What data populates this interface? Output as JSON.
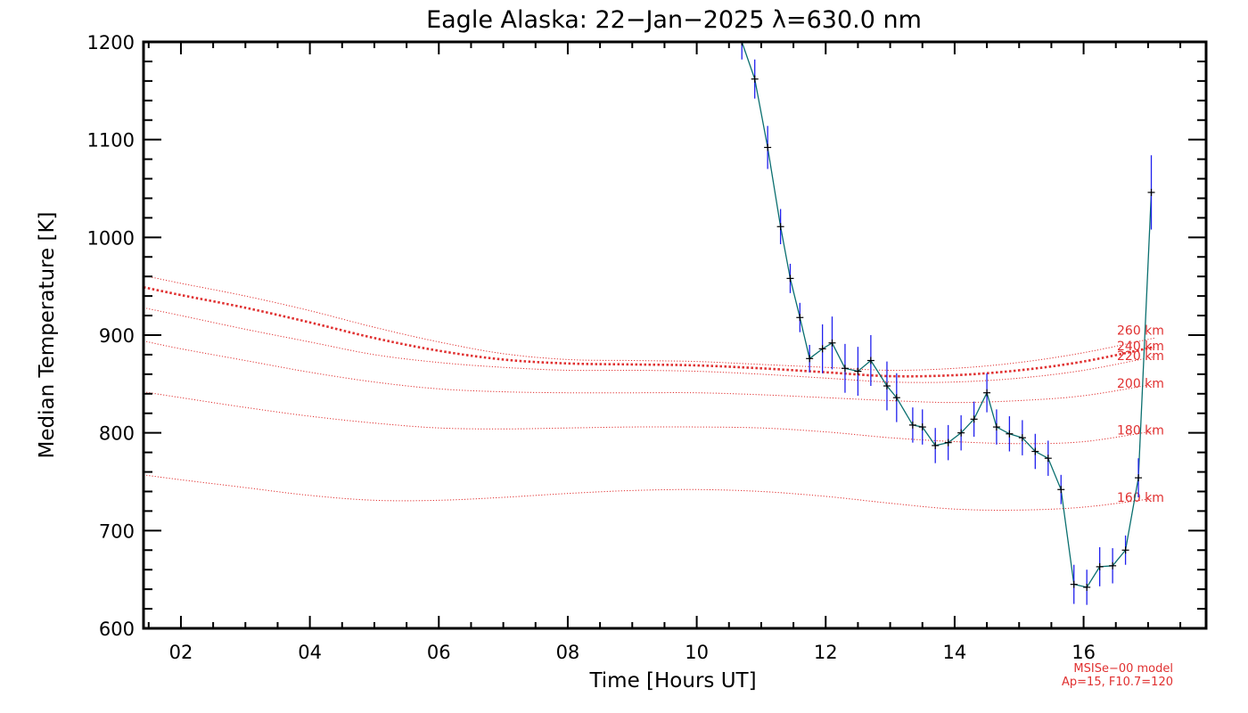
{
  "chart_data": {
    "type": "line",
    "title": "Eagle Alaska: 22−Jan−2025 λ=630.0 nm",
    "xlabel": "Time [Hours UT]",
    "ylabel": "Median Temperature [K]",
    "xlim": [
      1.42,
      17.9
    ],
    "ylim": [
      600,
      1200
    ],
    "xticks": [
      {
        "value": 2,
        "label": "02"
      },
      {
        "value": 4,
        "label": "04"
      },
      {
        "value": 6,
        "label": "06"
      },
      {
        "value": 8,
        "label": "08"
      },
      {
        "value": 10,
        "label": "10"
      },
      {
        "value": 12,
        "label": "12"
      },
      {
        "value": 14,
        "label": "14"
      },
      {
        "value": 16,
        "label": "16"
      }
    ],
    "yticks": [
      {
        "value": 600,
        "label": "600"
      },
      {
        "value": 700,
        "label": "700"
      },
      {
        "value": 800,
        "label": "800"
      },
      {
        "value": 900,
        "label": "900"
      },
      {
        "value": 1000,
        "label": "1000"
      },
      {
        "value": 1100,
        "label": "1100"
      },
      {
        "value": 1200,
        "label": "1200"
      }
    ],
    "measurements": {
      "name": "Median Temperature",
      "color": "#0a6f6f",
      "errorbar_color": "#2020ee",
      "points": [
        {
          "x": 10.7,
          "y": 1200,
          "err": 18
        },
        {
          "x": 10.9,
          "y": 1162,
          "err": 20
        },
        {
          "x": 11.1,
          "y": 1092,
          "err": 22
        },
        {
          "x": 11.3,
          "y": 1011,
          "err": 18
        },
        {
          "x": 11.45,
          "y": 958,
          "err": 15
        },
        {
          "x": 11.6,
          "y": 918,
          "err": 15
        },
        {
          "x": 11.75,
          "y": 876,
          "err": 14
        },
        {
          "x": 11.95,
          "y": 886,
          "err": 25
        },
        {
          "x": 12.1,
          "y": 892,
          "err": 27
        },
        {
          "x": 12.3,
          "y": 866,
          "err": 25
        },
        {
          "x": 12.5,
          "y": 863,
          "err": 25
        },
        {
          "x": 12.7,
          "y": 874,
          "err": 26
        },
        {
          "x": 12.95,
          "y": 848,
          "err": 25
        },
        {
          "x": 13.1,
          "y": 836,
          "err": 25
        },
        {
          "x": 13.35,
          "y": 808,
          "err": 18
        },
        {
          "x": 13.5,
          "y": 806,
          "err": 18
        },
        {
          "x": 13.7,
          "y": 787,
          "err": 18
        },
        {
          "x": 13.9,
          "y": 790,
          "err": 18
        },
        {
          "x": 14.1,
          "y": 800,
          "err": 18
        },
        {
          "x": 14.3,
          "y": 814,
          "err": 18
        },
        {
          "x": 14.5,
          "y": 841,
          "err": 20
        },
        {
          "x": 14.65,
          "y": 806,
          "err": 18
        },
        {
          "x": 14.85,
          "y": 799,
          "err": 18
        },
        {
          "x": 15.05,
          "y": 795,
          "err": 18
        },
        {
          "x": 15.25,
          "y": 781,
          "err": 18
        },
        {
          "x": 15.45,
          "y": 774,
          "err": 18
        },
        {
          "x": 15.65,
          "y": 742,
          "err": 15
        },
        {
          "x": 15.85,
          "y": 645,
          "err": 20
        },
        {
          "x": 16.05,
          "y": 642,
          "err": 18
        },
        {
          "x": 16.25,
          "y": 663,
          "err": 20
        },
        {
          "x": 16.45,
          "y": 664,
          "err": 18
        },
        {
          "x": 16.65,
          "y": 680,
          "err": 15
        },
        {
          "x": 16.85,
          "y": 754,
          "err": 20
        },
        {
          "x": 17.05,
          "y": 1046,
          "err": 38
        }
      ]
    },
    "model_curves": [
      {
        "name": "160 km",
        "label": "160 km",
        "style": "dotted",
        "color": "#e03030",
        "x": [
          1.42,
          2,
          3,
          4,
          5,
          6,
          7,
          8,
          9,
          10,
          11,
          12,
          13,
          14,
          15,
          16,
          17.1
        ],
        "y": [
          757,
          752,
          744,
          736,
          731,
          731,
          734,
          738,
          741,
          742,
          740,
          735,
          728,
          722,
          721,
          724,
          733
        ]
      },
      {
        "name": "180 km",
        "label": "180 km",
        "style": "dotted",
        "color": "#e03030",
        "x": [
          1.42,
          2,
          3,
          4,
          5,
          6,
          7,
          8,
          9,
          10,
          11,
          12,
          13,
          14,
          15,
          16,
          17.1
        ],
        "y": [
          842,
          836,
          826,
          817,
          810,
          805,
          804,
          805,
          806,
          806,
          805,
          801,
          795,
          791,
          789,
          791,
          802
        ]
      },
      {
        "name": "200 km",
        "label": "200 km",
        "style": "dotted",
        "color": "#e03030",
        "x": [
          1.42,
          2,
          3,
          4,
          5,
          6,
          7,
          8,
          9,
          10,
          11,
          12,
          13,
          14,
          15,
          16,
          17.1
        ],
        "y": [
          894,
          886,
          874,
          862,
          852,
          845,
          842,
          841,
          841,
          841,
          839,
          836,
          833,
          831,
          833,
          838,
          850
        ]
      },
      {
        "name": "220 km",
        "label": "220 km",
        "style": "dotted",
        "color": "#e03030",
        "x": [
          1.42,
          2,
          3,
          4,
          5,
          6,
          7,
          8,
          9,
          10,
          11,
          12,
          13,
          14,
          15,
          16,
          17.1
        ],
        "y": [
          928,
          920,
          906,
          893,
          880,
          872,
          867,
          864,
          864,
          863,
          860,
          856,
          852,
          852,
          856,
          864,
          878
        ]
      },
      {
        "name": "240 km",
        "label": "240 km",
        "style": "dotted-thick",
        "color": "#e03030",
        "x": [
          1.42,
          2,
          3,
          4,
          5,
          6,
          7,
          8,
          9,
          10,
          11,
          12,
          13,
          14,
          15,
          16,
          17.1
        ],
        "y": [
          949,
          941,
          928,
          913,
          897,
          884,
          875,
          871,
          870,
          869,
          866,
          862,
          858,
          859,
          864,
          873,
          888
        ]
      },
      {
        "name": "260 km",
        "label": "260 km",
        "style": "dotted",
        "color": "#e03030",
        "x": [
          1.42,
          2,
          3,
          4,
          5,
          6,
          7,
          8,
          9,
          10,
          11,
          12,
          13,
          14,
          15,
          16,
          17.1
        ],
        "y": [
          961,
          953,
          940,
          925,
          908,
          893,
          881,
          875,
          874,
          873,
          870,
          867,
          864,
          866,
          872,
          882,
          897
        ]
      }
    ],
    "annotations": {
      "model_line1": "MSISe−00 model",
      "model_line2": "Ap=15, F10.7=120"
    },
    "colors": {
      "frame": "#000000",
      "model": "#e03030",
      "data_line": "#0a6f6f",
      "errorbar": "#2020ee",
      "marker": "#000000"
    }
  }
}
